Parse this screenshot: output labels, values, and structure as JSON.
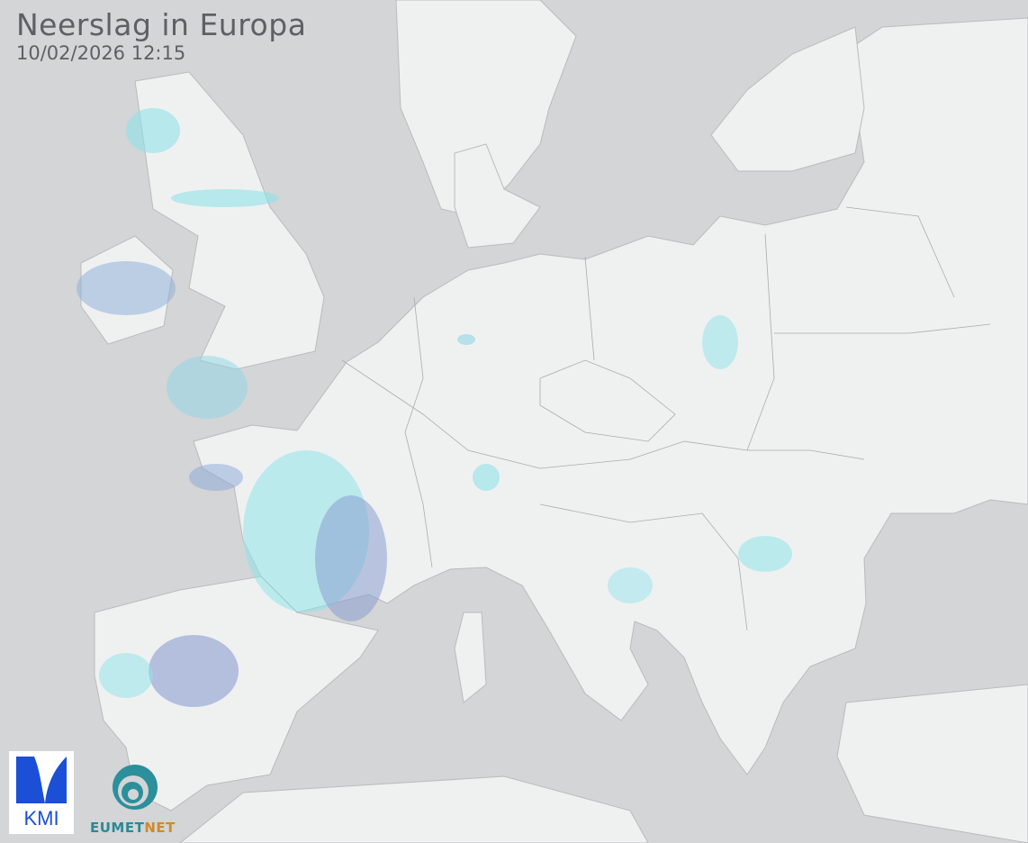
{
  "header": {
    "title": "Neerslag in Europa",
    "timestamp": "10/02/2026 12:15"
  },
  "logos": {
    "kmi": "KMI",
    "eumetnet_a": "EUMET",
    "eumetnet_b": "NET"
  },
  "colors": {
    "sea": "#d3d5d6",
    "land": "#eff1f1",
    "border": "#a9abad",
    "rain_light": "#8fe3ea",
    "rain_heavy": "#8a9fd0"
  }
}
